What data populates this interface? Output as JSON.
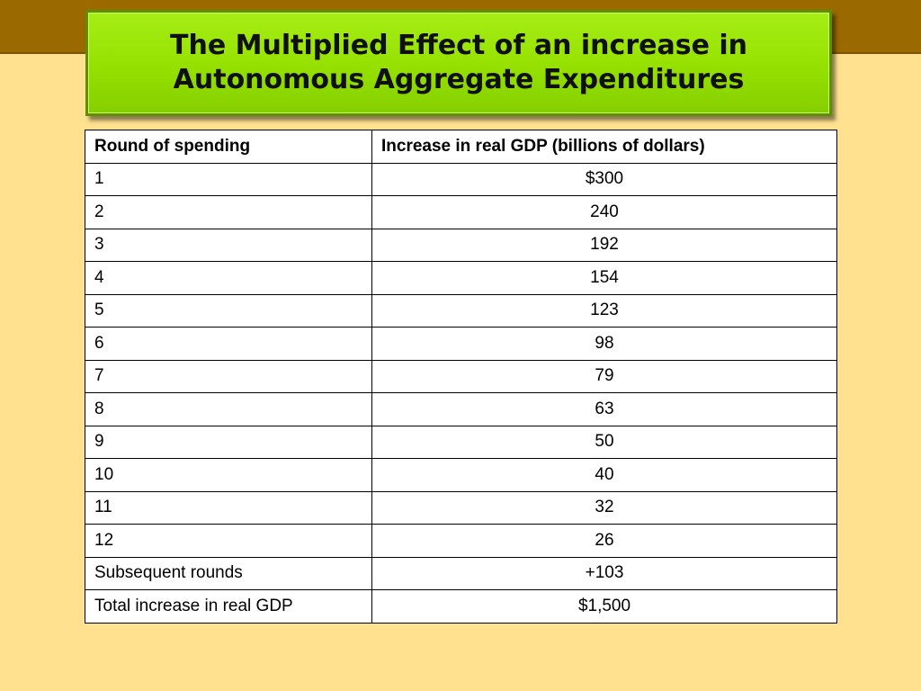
{
  "title": {
    "line1": "The Multiplied Effect of an increase in",
    "line2": "Autonomous Aggregate Expenditures"
  },
  "table": {
    "headers": [
      "Round of spending",
      "Increase in real GDP (billions of dollars)"
    ],
    "rows": [
      {
        "round": "1",
        "increase": "$300"
      },
      {
        "round": "2",
        "increase": "240"
      },
      {
        "round": "3",
        "increase": "192"
      },
      {
        "round": "4",
        "increase": "154"
      },
      {
        "round": "5",
        "increase": "123"
      },
      {
        "round": "6",
        "increase": "98"
      },
      {
        "round": "7",
        "increase": "79"
      },
      {
        "round": "8",
        "increase": "63"
      },
      {
        "round": "9",
        "increase": "50"
      },
      {
        "round": "10",
        "increase": "40"
      },
      {
        "round": "11",
        "increase": "32"
      },
      {
        "round": "12",
        "increase": "26"
      },
      {
        "round": "Subsequent rounds",
        "increase": "+103"
      },
      {
        "round": "Total increase in real GDP",
        "increase": "$1,500"
      }
    ]
  },
  "colors": {
    "background": "#ffe190",
    "top_band": "#9a6a00",
    "title_fill": "#95e000",
    "title_border": "#5e8f00"
  }
}
